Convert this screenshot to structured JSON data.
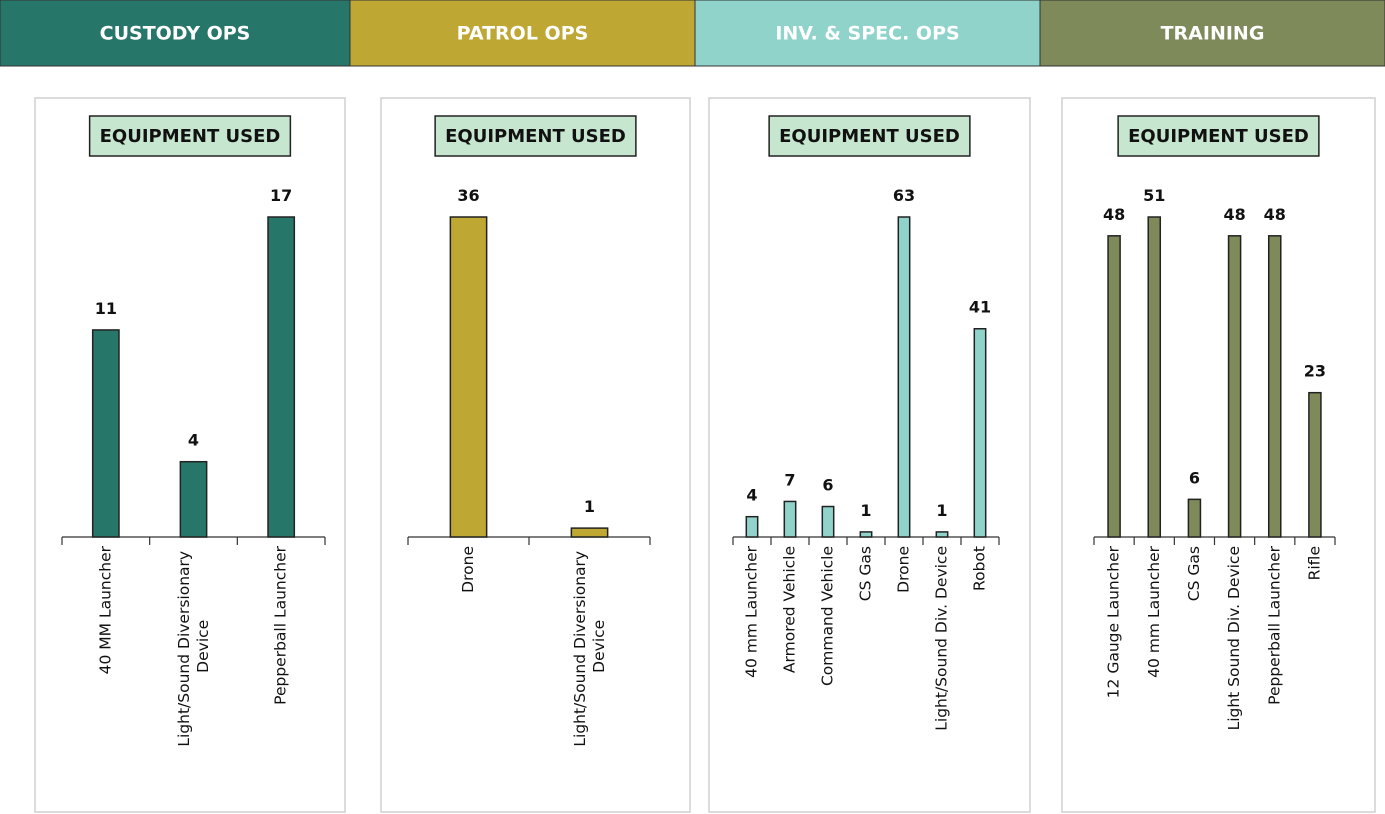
{
  "chart_data": [
    {
      "type": "bar",
      "header": "CUSTODY OPS",
      "title": "EQUIPMENT USED",
      "color": "#27766a",
      "categories": [
        "40 MM Launcher",
        "Light/Sound Diversionary Device",
        "Pepperball Launcher"
      ],
      "values": [
        11,
        4,
        17
      ]
    },
    {
      "type": "bar",
      "header": "PATROL OPS",
      "title": "EQUIPMENT USED",
      "color": "#bfa733",
      "categories": [
        "Drone",
        "Light/Sound Diversionary Device"
      ],
      "values": [
        36,
        1
      ]
    },
    {
      "type": "bar",
      "header": "INV. & SPEC. OPS",
      "title": "EQUIPMENT USED",
      "color": "#8fd3cb",
      "categories": [
        "40 mm Launcher",
        "Armored Vehicle",
        "Command Vehicle",
        "CS Gas",
        "Drone",
        "Light/Sound Div. Device",
        "Robot"
      ],
      "values": [
        4,
        7,
        6,
        1,
        63,
        1,
        41
      ]
    },
    {
      "type": "bar",
      "header": "TRAINING",
      "title": "EQUIPMENT USED",
      "color": "#7e8a5a",
      "categories": [
        "12 Gauge Launcher",
        "40 mm Launcher",
        "CS Gas",
        "Light Sound Div. Device",
        "Pepperball Launcher",
        "Rifle"
      ],
      "values": [
        48,
        51,
        6,
        48,
        48,
        23
      ]
    }
  ]
}
